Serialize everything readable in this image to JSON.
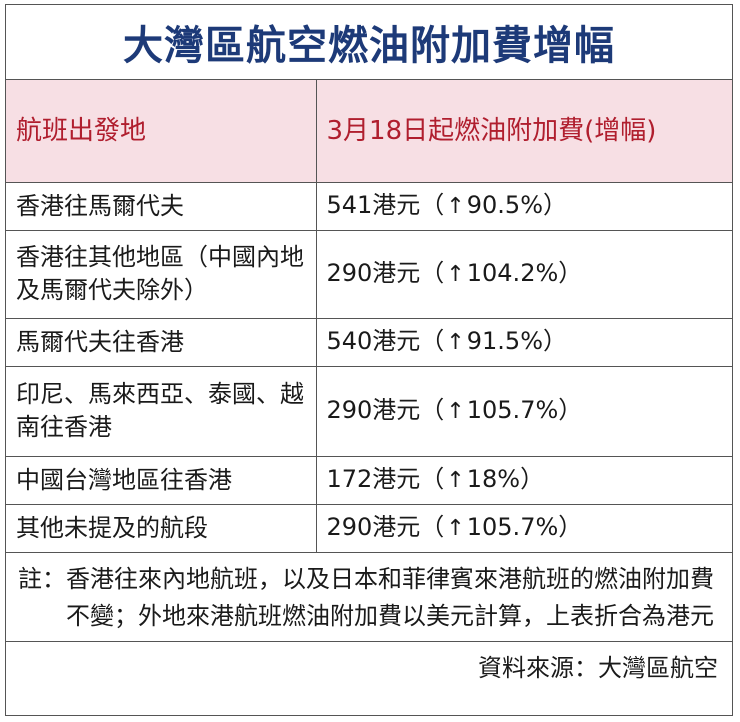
{
  "title": "大灣區航空燃油附加費增幅",
  "table": {
    "header": {
      "col1": "航班出發地",
      "col2": "3月18日起燃油附加費(增幅)"
    },
    "rows": [
      {
        "origin": "香港往馬爾代夫",
        "amount": "541港元（",
        "arrow": "↑",
        "pct": "90.5%）"
      },
      {
        "origin": "香港往其他地區（中國內地及馬爾代夫除外）",
        "amount": "290港元（",
        "arrow": "↑",
        "pct": "104.2%）"
      },
      {
        "origin": "馬爾代夫往香港",
        "amount": "540港元（",
        "arrow": "↑",
        "pct": "91.5%）"
      },
      {
        "origin": "印尼、馬來西亞、泰國、越南往香港",
        "amount": "290港元（",
        "arrow": "↑",
        "pct": "105.7%）"
      },
      {
        "origin": "中國台灣地區往香港",
        "amount": "172港元（",
        "arrow": "↑",
        "pct": "18%）"
      },
      {
        "origin": "其他未提及的航段",
        "amount": "290港元（",
        "arrow": "↑",
        "pct": "105.7%）"
      }
    ]
  },
  "note": {
    "label": "註：",
    "text": "香港往來內地航班，以及日本和菲律賓來港航班的燃油附加費不變；外地來港航班燃油附加費以美元計算，上表折合為港元"
  },
  "source": "資料來源：大灣區航空",
  "colors": {
    "title": "#1d3a78",
    "header_bg": "#f7dfe4",
    "header_text": "#b01e2e"
  }
}
